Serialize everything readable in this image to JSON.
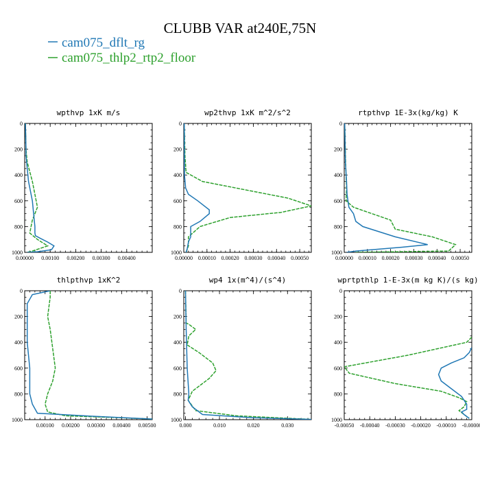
{
  "figure": {
    "title": "CLUBB VAR at240E,75N",
    "legend": [
      {
        "name": "cam075_dflt_rg",
        "color": "#1f77b4"
      },
      {
        "name": "cam075_thlp2_rtp2_floor",
        "color": "#2ca02c"
      }
    ]
  },
  "chart_data": [
    {
      "type": "line",
      "title": "wpthvp  1xK m/s",
      "xlim": [
        0,
        0.005
      ],
      "ylim": [
        1000,
        0
      ],
      "xticks": [
        0,
        0.001,
        0.002,
        0.003,
        0.004
      ],
      "xtick_labels": [
        "0.00000",
        "0.00100",
        "0.00200",
        "0.00300",
        "0.00400"
      ],
      "yticks": [
        0,
        200,
        400,
        600,
        800,
        1000
      ],
      "ytick_labels": [
        "0",
        "200",
        "400",
        "600",
        "800",
        "1000"
      ],
      "series": [
        {
          "name": "cam075_dflt_rg",
          "color": "#1f77b4",
          "x": [
            3e-05,
            5e-05,
            5e-05,
            0.00015,
            0.0003,
            0.00035,
            0.0004,
            0.0004,
            0.00042,
            0.0006,
            0.0009,
            0.00115,
            0.00105,
            0.0005,
            0.0001
          ],
          "y": [
            0,
            200,
            250,
            450,
            600,
            700,
            800,
            850,
            870,
            890,
            920,
            950,
            980,
            995,
            1000
          ]
        },
        {
          "name": "cam075_thlp2_rtp2_floor",
          "color": "#2ca02c",
          "x": [
            3e-05,
            5e-05,
            0.0001,
            0.0003,
            0.0005,
            0.0003,
            0.00025,
            0.0002,
            0.0005,
            0.0009,
            0.0003,
            0.0001
          ],
          "y": [
            0,
            200,
            300,
            450,
            650,
            750,
            800,
            850,
            900,
            950,
            990,
            1000
          ]
        }
      ]
    },
    {
      "type": "line",
      "title": "wp2thvp  1xK m^2/s^2",
      "xlim": [
        0,
        0.00055
      ],
      "ylim": [
        1000,
        0
      ],
      "xticks": [
        0,
        0.0001,
        0.0002,
        0.0003,
        0.0004,
        0.0005
      ],
      "xtick_labels": [
        "0.00000",
        "0.00010",
        "0.00020",
        "0.00030",
        "0.00040",
        "0.00050"
      ],
      "yticks": [
        0,
        200,
        400,
        600,
        800,
        1000
      ],
      "ytick_labels": [
        "0",
        "200",
        "400",
        "600",
        "800",
        "1000"
      ],
      "series": [
        {
          "name": "cam075_dflt_rg",
          "color": "#1f77b4",
          "x": [
            2e-06,
            3e-06,
            8e-06,
            2e-05,
            6e-05,
            0.00011,
            0.00011,
            7e-05,
            3e-05,
            3e-05,
            2e-05,
            1.5e-05,
            1e-05
          ],
          "y": [
            0,
            400,
            500,
            550,
            600,
            670,
            700,
            760,
            800,
            880,
            920,
            970,
            1000
          ]
        },
        {
          "name": "cam075_thlp2_rtp2_floor",
          "color": "#2ca02c",
          "x": [
            2e-06,
            5e-06,
            1e-05,
            8e-05,
            0.00028,
            0.00045,
            0.00055,
            0.00042,
            0.0002,
            7e-05,
            2e-05,
            2e-05,
            1e-05
          ],
          "y": [
            0,
            250,
            380,
            450,
            520,
            580,
            640,
            690,
            730,
            800,
            880,
            950,
            1000
          ]
        }
      ]
    },
    {
      "type": "line",
      "title": "rtpthvp  1E-3x(kg/kg) K",
      "xlim": [
        0,
        0.00055
      ],
      "ylim": [
        1000,
        0
      ],
      "xticks": [
        0,
        0.0001,
        0.0002,
        0.0003,
        0.0004,
        0.0005
      ],
      "xtick_labels": [
        "0.00000",
        "0.00010",
        "0.00020",
        "0.00030",
        "0.00040",
        "0.00050"
      ],
      "yticks": [
        0,
        200,
        400,
        600,
        800,
        1000
      ],
      "ytick_labels": [
        "0",
        "200",
        "400",
        "600",
        "800",
        "1000"
      ],
      "series": [
        {
          "name": "cam075_dflt_rg",
          "color": "#1f77b4",
          "x": [
            2e-06,
            5e-06,
            1e-05,
            1.2e-05,
            2e-05,
            4e-05,
            5e-05,
            8e-05,
            0.00022,
            0.00036,
            0.00025,
            5e-05,
            1e-05
          ],
          "y": [
            0,
            300,
            450,
            550,
            650,
            700,
            760,
            800,
            880,
            940,
            960,
            990,
            1000
          ]
        },
        {
          "name": "cam075_thlp2_rtp2_floor",
          "color": "#2ca02c",
          "x": [
            2e-06,
            6e-06,
            1e-05,
            8e-06,
            4e-05,
            0.0002,
            0.00022,
            0.00038,
            0.00048,
            0.00045,
            5e-05
          ],
          "y": [
            0,
            300,
            500,
            600,
            650,
            750,
            820,
            880,
            940,
            990,
            1000
          ]
        }
      ]
    },
    {
      "type": "line",
      "title": "thlpthvp  1xK^2",
      "xlim": [
        0.0002,
        0.0052
      ],
      "ylim": [
        1000,
        0
      ],
      "xticks": [
        0.001,
        0.002,
        0.003,
        0.004,
        0.005
      ],
      "xtick_labels": [
        "0.00100",
        "0.00200",
        "0.00300",
        "0.00400",
        "0.00500"
      ],
      "yticks": [
        0,
        200,
        400,
        600,
        800,
        1000
      ],
      "ytick_labels": [
        "0",
        "200",
        "400",
        "600",
        "800",
        "1000"
      ],
      "series": [
        {
          "name": "cam075_dflt_rg",
          "color": "#1f77b4",
          "x": [
            0.0012,
            0.0005,
            0.0003,
            0.0003,
            0.0003,
            0.0004,
            0.0004,
            0.0005,
            0.0007,
            0.003,
            0.0052
          ],
          "y": [
            0,
            30,
            100,
            200,
            400,
            600,
            800,
            880,
            950,
            975,
            995
          ]
        },
        {
          "name": "cam075_thlp2_rtp2_floor",
          "color": "#2ca02c",
          "x": [
            0.0012,
            0.0012,
            0.0011,
            0.0012,
            0.0013,
            0.0014,
            0.0013,
            0.0011,
            0.001,
            0.0011,
            0.0018,
            0.004,
            0.0052
          ],
          "y": [
            0,
            50,
            200,
            300,
            450,
            600,
            700,
            800,
            880,
            940,
            970,
            985,
            995
          ]
        }
      ]
    },
    {
      "type": "line",
      "title": "wp4  1x(m^4)/(s^4)",
      "xlim": [
        -0.0005,
        0.037
      ],
      "ylim": [
        1000,
        0
      ],
      "xticks": [
        0,
        0.01,
        0.02,
        0.03
      ],
      "xtick_labels": [
        "0.000",
        "0.010",
        "0.020",
        "0.030"
      ],
      "yticks": [
        0,
        200,
        400,
        600,
        800,
        1000
      ],
      "ytick_labels": [
        "0",
        "200",
        "400",
        "600",
        "800",
        "1000"
      ],
      "series": [
        {
          "name": "cam075_dflt_rg",
          "color": "#1f77b4",
          "x": [
            0,
            0.0002,
            0.0005,
            0.001,
            0.0008,
            0.002,
            0.005,
            0.02,
            0.037
          ],
          "y": [
            0,
            300,
            600,
            800,
            850,
            900,
            960,
            985,
            998
          ]
        },
        {
          "name": "cam075_thlp2_rtp2_floor",
          "color": "#2ca02c",
          "x": [
            0,
            0.0002,
            0.001,
            0.003,
            0.001,
            0.0005,
            0.004,
            0.008,
            0.009,
            0.007,
            0.002,
            0.0008,
            0.003,
            0.015,
            0.037
          ],
          "y": [
            0,
            250,
            260,
            300,
            350,
            420,
            480,
            560,
            620,
            680,
            780,
            850,
            930,
            970,
            998
          ]
        }
      ]
    },
    {
      "type": "line",
      "title": "wprtpthlp  1-E-3x(m kg K)/(s kg)",
      "xlim": [
        -0.0005,
        0.0
      ],
      "ylim": [
        1000,
        0
      ],
      "xticks": [
        -0.0005,
        -0.0004,
        -0.0003,
        -0.0002,
        -0.0001,
        0
      ],
      "xtick_labels": [
        "-0.00050",
        "-0.00040",
        "-0.00030",
        "-0.00020",
        "-0.00010",
        "-0.00000"
      ],
      "yticks": [
        0,
        200,
        400,
        600,
        800,
        1000
      ],
      "ytick_labels": [
        "0",
        "200",
        "400",
        "600",
        "800",
        "1000"
      ],
      "series": [
        {
          "name": "cam075_dflt_rg",
          "color": "#1f77b4",
          "x": [
            0,
            -1e-05,
            -3e-05,
            -8e-05,
            -0.00012,
            -0.00013,
            -0.00012,
            -8e-05,
            -4e-05,
            -2e-05,
            -2e-05,
            -4e-05,
            -3e-05,
            -1e-05
          ],
          "y": [
            440,
            480,
            520,
            560,
            600,
            650,
            700,
            760,
            820,
            880,
            920,
            940,
            960,
            990
          ]
        },
        {
          "name": "cam075_thlp2_rtp2_floor",
          "color": "#2ca02c",
          "x": [
            0,
            -2e-05,
            -0.00025,
            -0.0005,
            -0.00048,
            -0.0003,
            -0.00012,
            -5e-05,
            -2e-05,
            -3e-05,
            -5e-05,
            -3e-05,
            -1e-05
          ],
          "y": [
            360,
            400,
            500,
            590,
            640,
            720,
            780,
            830,
            860,
            900,
            930,
            960,
            990
          ]
        }
      ]
    }
  ]
}
